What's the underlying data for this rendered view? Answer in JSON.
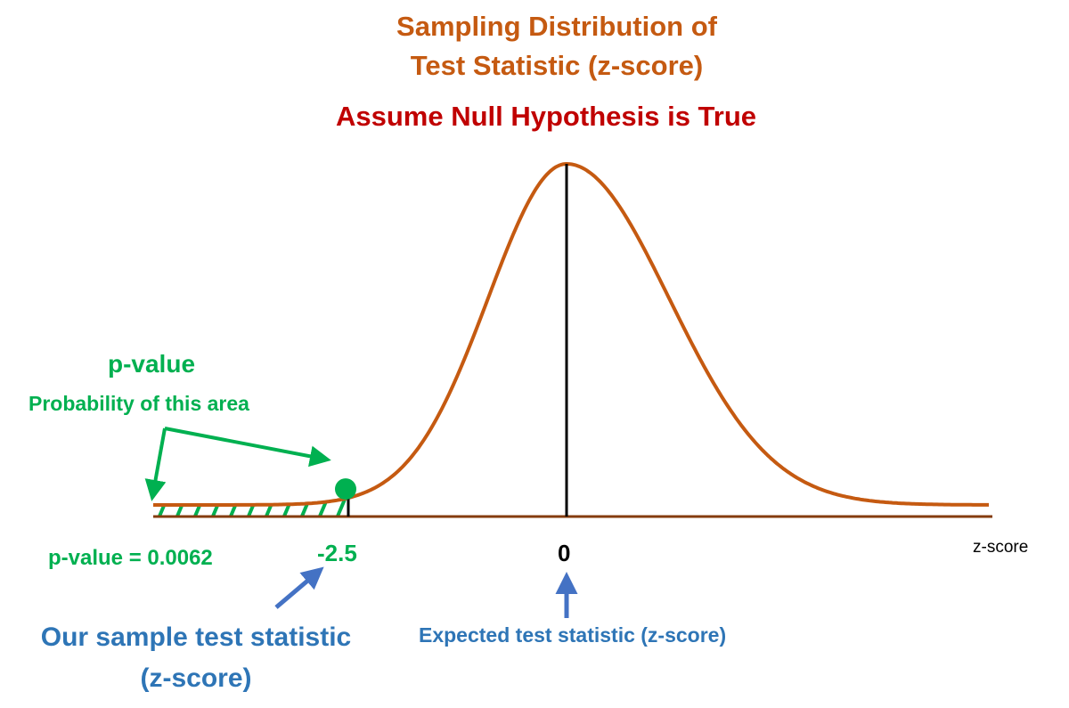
{
  "title": {
    "line1": "Sampling Distribution of",
    "line2": "Test Statistic (z-score)"
  },
  "subtitle": "Assume Null Hypothesis is True",
  "pvalue": {
    "heading": "p-value",
    "description": "Probability of this area",
    "result": "p-value = 0.0062",
    "z": -2.5,
    "probability": 0.0062
  },
  "axis": {
    "label": "z-score",
    "ticks": [
      {
        "value": -2.5,
        "text": "-2.5"
      },
      {
        "value": 0,
        "text": "0"
      }
    ]
  },
  "annotations": {
    "sample": {
      "line1": "Our sample test statistic",
      "line2": "(z-score)"
    },
    "expected": "Expected test statistic (z-score)"
  },
  "colors": {
    "curve": "#c55a11",
    "title": "#c55a11",
    "subtitle": "#c00000",
    "pvalue": "#00b050",
    "annotation": "#2e75b6",
    "axis": "#843c0c"
  }
}
